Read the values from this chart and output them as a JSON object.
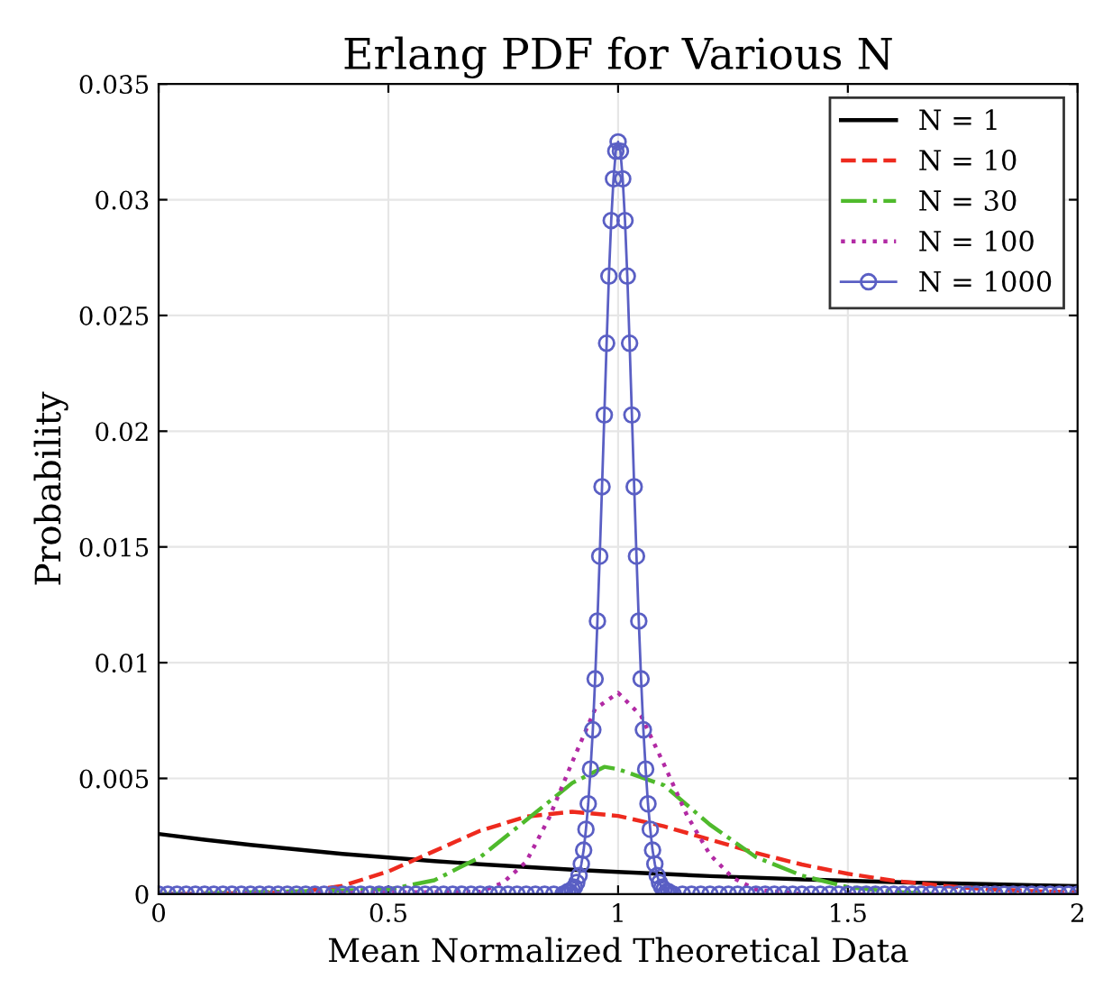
{
  "chart_data": {
    "type": "line",
    "title": "Erlang PDF for Various N",
    "xlabel": "Mean Normalized Theoretical Data",
    "ylabel": "Probability",
    "xlim": [
      0,
      2
    ],
    "xticks": [
      0,
      0.5,
      1,
      1.5,
      2
    ],
    "ylim": [
      0,
      0.035
    ],
    "yticks": [
      0,
      0.005,
      0.01,
      0.015,
      0.02,
      0.025,
      0.03,
      0.035
    ],
    "grid": true,
    "legend": "top right",
    "series": [
      {
        "name": "N = 1",
        "color": "#000000",
        "line_style": "solid",
        "marker": "none",
        "x": [
          0,
          0.1,
          0.2,
          0.3,
          0.4,
          0.5,
          0.6,
          0.7,
          0.8,
          0.9,
          1.0,
          1.1,
          1.2,
          1.3,
          1.4,
          1.5,
          1.6,
          1.7,
          1.8,
          1.9,
          2.0
        ],
        "values": [
          0.0026,
          0.00235,
          0.00213,
          0.00193,
          0.00174,
          0.00158,
          0.00143,
          0.00129,
          0.00117,
          0.00106,
          0.00096,
          0.00087,
          0.00078,
          0.00071,
          0.00064,
          0.00058,
          0.00052,
          0.00047,
          0.00043,
          0.00039,
          0.00035
        ]
      },
      {
        "name": "N = 10",
        "color": "#ee2a1e",
        "line_style": "dashed",
        "marker": "none",
        "x": [
          0,
          0.3,
          0.4,
          0.5,
          0.6,
          0.7,
          0.8,
          0.9,
          1.0,
          1.1,
          1.2,
          1.3,
          1.4,
          1.5,
          1.6,
          1.7,
          1.8,
          1.9,
          2.0
        ],
        "values": [
          0,
          7e-05,
          0.00036,
          0.00098,
          0.00186,
          0.00274,
          0.00335,
          0.00356,
          0.00338,
          0.00293,
          0.00236,
          0.00178,
          0.00128,
          0.00088,
          0.00058,
          0.00037,
          0.00022,
          0.00013,
          8e-05
        ]
      },
      {
        "name": "N = 30",
        "color": "#4fba2c",
        "line_style": "dashdot",
        "marker": "none",
        "x": [
          0,
          0.5,
          0.6,
          0.7,
          0.8,
          0.9,
          0.97,
          1.0,
          1.1,
          1.2,
          1.3,
          1.4,
          1.5,
          1.6,
          1.7,
          2.0
        ],
        "values": [
          0,
          0.0002,
          0.0006,
          0.0016,
          0.0032,
          0.0048,
          0.0055,
          0.0054,
          0.0047,
          0.003,
          0.0016,
          0.0008,
          0.0003,
          0.0001,
          0,
          0
        ]
      },
      {
        "name": "N = 100",
        "color": "#b22aa4",
        "line_style": "dotted",
        "marker": "none",
        "x": [
          0,
          0.7,
          0.75,
          0.8,
          0.85,
          0.9,
          0.95,
          1.0,
          1.05,
          1.1,
          1.15,
          1.2,
          1.25,
          1.3,
          1.35,
          1.4,
          2.0
        ],
        "values": [
          0,
          0.0001,
          0.0005,
          0.0014,
          0.0033,
          0.0057,
          0.008,
          0.0087,
          0.0077,
          0.0056,
          0.0034,
          0.0017,
          0.0007,
          0.0002,
          0.0001,
          0,
          0
        ]
      },
      {
        "name": "N = 1000",
        "color": "#5a5fc4",
        "line_style": "solid",
        "marker": "circle",
        "x": [
          0,
          0.02,
          0.04,
          0.06,
          0.08,
          0.1,
          0.12,
          0.14,
          0.16,
          0.18,
          0.2,
          0.22,
          0.24,
          0.26,
          0.28,
          0.3,
          0.32,
          0.34,
          0.36,
          0.38,
          0.4,
          0.42,
          0.44,
          0.46,
          0.48,
          0.5,
          0.52,
          0.54,
          0.56,
          0.58,
          0.6,
          0.62,
          0.64,
          0.66,
          0.68,
          0.7,
          0.72,
          0.74,
          0.76,
          0.78,
          0.8,
          0.82,
          0.84,
          0.86,
          0.88,
          0.885,
          0.89,
          0.895,
          0.9,
          0.905,
          0.91,
          0.915,
          0.92,
          0.925,
          0.93,
          0.935,
          0.94,
          0.945,
          0.95,
          0.955,
          0.96,
          0.965,
          0.97,
          0.975,
          0.98,
          0.985,
          0.99,
          0.995,
          1.0,
          1.005,
          1.01,
          1.015,
          1.02,
          1.025,
          1.03,
          1.035,
          1.04,
          1.045,
          1.05,
          1.055,
          1.06,
          1.065,
          1.07,
          1.075,
          1.08,
          1.085,
          1.09,
          1.095,
          1.1,
          1.105,
          1.11,
          1.115,
          1.12,
          1.14,
          1.16,
          1.18,
          1.2,
          1.22,
          1.24,
          1.26,
          1.28,
          1.3,
          1.32,
          1.34,
          1.36,
          1.38,
          1.4,
          1.42,
          1.44,
          1.46,
          1.48,
          1.5,
          1.52,
          1.54,
          1.56,
          1.58,
          1.6,
          1.62,
          1.64,
          1.66,
          1.68,
          1.7,
          1.72,
          1.74,
          1.76,
          1.78,
          1.8,
          1.82,
          1.84,
          1.86,
          1.88,
          1.9,
          1.92,
          1.94,
          1.96,
          1.98,
          2.0
        ],
        "values": [
          0,
          0,
          0,
          0,
          0,
          0,
          0,
          0,
          0,
          0,
          0,
          0,
          0,
          0,
          0,
          0,
          0,
          0,
          0,
          0,
          0,
          0,
          0,
          0,
          0,
          0,
          0,
          0,
          0,
          0,
          0,
          0,
          0,
          0,
          0,
          0,
          0,
          0,
          0,
          0,
          0,
          0,
          0,
          0,
          0,
          0,
          0.0001,
          0.0001,
          0.0002,
          0.0003,
          0.0005,
          0.0008,
          0.0013,
          0.0019,
          0.0028,
          0.0039,
          0.0054,
          0.0071,
          0.0093,
          0.0118,
          0.0146,
          0.0176,
          0.0207,
          0.0238,
          0.0267,
          0.0291,
          0.0309,
          0.0321,
          0.0325,
          0.0321,
          0.0309,
          0.0291,
          0.0267,
          0.0238,
          0.0207,
          0.0176,
          0.0146,
          0.0118,
          0.0093,
          0.0071,
          0.0054,
          0.0039,
          0.0028,
          0.0019,
          0.0013,
          0.0008,
          0.0005,
          0.0003,
          0.0002,
          0.0001,
          0.0001,
          0,
          0,
          0,
          0,
          0,
          0,
          0,
          0,
          0,
          0,
          0,
          0,
          0,
          0,
          0,
          0,
          0,
          0,
          0,
          0,
          0,
          0,
          0,
          0,
          0,
          0,
          0,
          0,
          0,
          0,
          0,
          0,
          0,
          0,
          0,
          0,
          0,
          0,
          0,
          0,
          0,
          0,
          0,
          0,
          0,
          0
        ]
      }
    ]
  }
}
